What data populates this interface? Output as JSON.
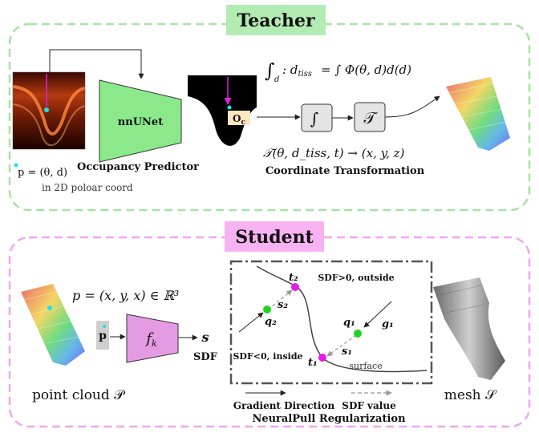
{
  "teacher": {
    "title": "Teacher",
    "point_label": "p = (θ, d)",
    "coord_note": "in 2D poloar coord",
    "nnunet_label": "nnUNet",
    "occupancy_label": "Occupancy Predictor",
    "origin_label": "O",
    "origin_sub": "c",
    "integral_eq_lhs": "d",
    "integral_eq_rhs": "= ∫ Φ(θ, d)d(d)",
    "integral_box_symbol": "∫",
    "transform_box_symbol": "𝒯",
    "transform_eq": "𝒯(θ, d_tiss, t) → (x, y, z)",
    "coord_transform_label": "Coordinate Transformation"
  },
  "student": {
    "title": "Student",
    "point_eq": "p = (x, y, x) ∈ ℝ³",
    "input_label": "p",
    "network_label": "f",
    "network_sub": "k",
    "output_label": "s",
    "sdf_label": "SDF",
    "point_cloud_label": "point cloud 𝒫",
    "mesh_label": "mesh 𝒮",
    "outside_label": "SDF>0, outside",
    "inside_label": "SDF<0, inside",
    "surface_label": "surface",
    "t2": "t₂",
    "s2": "s₂",
    "q2": "q₂",
    "q1": "q₁",
    "g1": "g₁",
    "s1": "s₁",
    "t1": "t₁",
    "legend_gradient": "Gradient Direction",
    "legend_sdf": "SDF value",
    "regularization_label": "NeuralPull Regularization"
  },
  "colors": {
    "teacher_frame": "#a6e3a1",
    "teacher_title_bg": "#b3ecb3",
    "student_frame": "#f0a6f0",
    "student_title_bg": "#f7b2f2",
    "nnunet_fill": "#8be98b",
    "fk_fill": "#e49be4",
    "magenta_point": "#e81ce8",
    "green_point": "#1fd41f",
    "cyan_point": "#1fe0e8"
  },
  "icons": [
    "oct-image-icon",
    "segmentation-mask-icon",
    "vessel-pointcloud-icon",
    "vessel-mesh-icon"
  ]
}
